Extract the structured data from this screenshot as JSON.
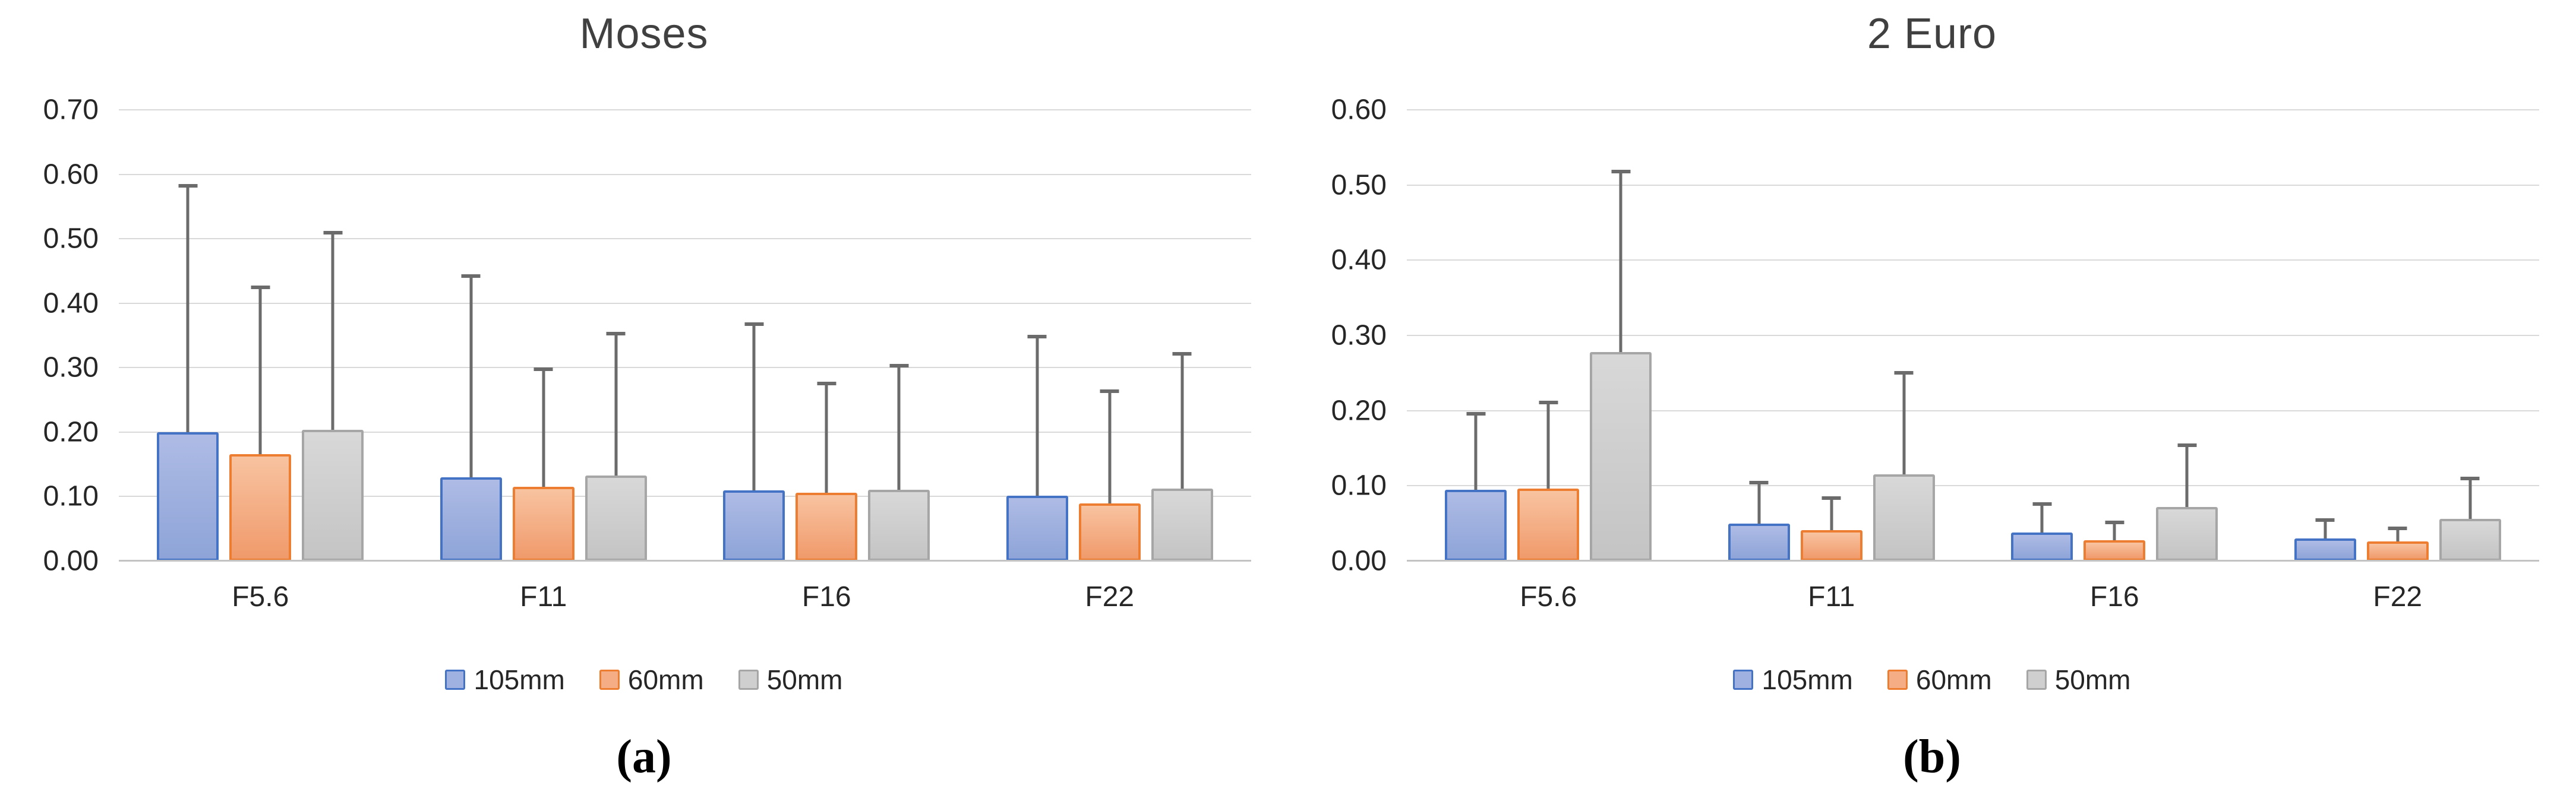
{
  "figure": {
    "description": "Two clustered bar charts with standard-deviation error bars comparing three lenses (105mm, 60mm, 50mm) at four aperture settings."
  },
  "chart_data": [
    {
      "type": "bar",
      "title": "Moses",
      "caption": "(a)",
      "categories": [
        "F5.6",
        "F11",
        "F16",
        "F22"
      ],
      "y_axis": {
        "min": 0.0,
        "max": 0.7,
        "step": 0.1,
        "tick_labels": [
          "0.70",
          "0.60",
          "0.50",
          "0.40",
          "0.30",
          "0.20",
          "0.10",
          "0.00"
        ]
      },
      "grid": true,
      "legend_position": "bottom",
      "series": [
        {
          "name": "105mm",
          "fill": "#8ea4d8",
          "border": "#4472c4",
          "values": [
            0.2,
            0.13,
            0.11,
            0.101
          ],
          "error_bar_top": [
            0.585,
            0.445,
            0.37,
            0.351
          ]
        },
        {
          "name": "60mm",
          "fill": "#f09a6b",
          "border": "#ed7d31",
          "values": [
            0.166,
            0.115,
            0.106,
            0.089
          ],
          "error_bar_top": [
            0.427,
            0.3,
            0.278,
            0.266
          ]
        },
        {
          "name": "50mm",
          "fill": "#c9c9c9",
          "border": "#a6a6a6",
          "values": [
            0.204,
            0.133,
            0.111,
            0.112
          ],
          "error_bar_top": [
            0.512,
            0.356,
            0.306,
            0.324
          ]
        }
      ]
    },
    {
      "type": "bar",
      "title": "2 Euro",
      "caption": "(b)",
      "categories": [
        "F5.6",
        "F11",
        "F16",
        "F22"
      ],
      "y_axis": {
        "min": 0.0,
        "max": 0.6,
        "step": 0.1,
        "tick_labels": [
          "0.60",
          "0.50",
          "0.40",
          "0.30",
          "0.20",
          "0.10",
          "0.00"
        ]
      },
      "grid": true,
      "legend_position": "bottom",
      "series": [
        {
          "name": "105mm",
          "fill": "#8ea4d8",
          "border": "#4472c4",
          "values": [
            0.095,
            0.05,
            0.038,
            0.03
          ],
          "error_bar_top": [
            0.198,
            0.107,
            0.078,
            0.057
          ]
        },
        {
          "name": "60mm",
          "fill": "#f09a6b",
          "border": "#ed7d31",
          "values": [
            0.096,
            0.041,
            0.028,
            0.026
          ],
          "error_bar_top": [
            0.213,
            0.086,
            0.054,
            0.046
          ]
        },
        {
          "name": "50mm",
          "fill": "#c9c9c9",
          "border": "#a6a6a6",
          "values": [
            0.278,
            0.115,
            0.072,
            0.056
          ],
          "error_bar_top": [
            0.52,
            0.253,
            0.156,
            0.112
          ]
        }
      ]
    }
  ],
  "colors": {
    "gridline": "#d9d9d9",
    "axis_line": "#c3c3c3",
    "error_bar": "#6b6b6b",
    "title_text": "#404040",
    "tick_text": "#262626"
  }
}
